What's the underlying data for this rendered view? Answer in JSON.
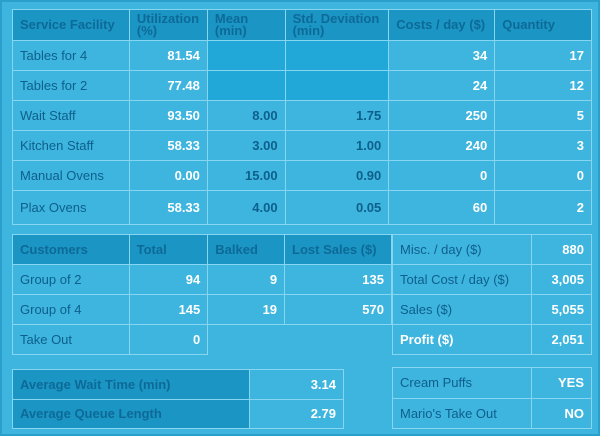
{
  "facilities": {
    "headers": [
      "Service Facility",
      "Utilization (%)",
      "Mean (min)",
      "Std. Deviation (min)",
      "Costs / day ($)",
      "Quantity"
    ],
    "rows": [
      {
        "name": "Tables for 4",
        "util": "81.54",
        "mean": "",
        "std": "",
        "cost": "34",
        "qty": "17"
      },
      {
        "name": "Tables for 2",
        "util": "77.48",
        "mean": "",
        "std": "",
        "cost": "24",
        "qty": "12"
      },
      {
        "name": "Wait Staff",
        "util": "93.50",
        "mean": "8.00",
        "std": "1.75",
        "cost": "250",
        "qty": "5"
      },
      {
        "name": "Kitchen Staff",
        "util": "58.33",
        "mean": "3.00",
        "std": "1.00",
        "cost": "240",
        "qty": "3"
      },
      {
        "name": "Manual Ovens",
        "util": "0.00",
        "mean": "15.00",
        "std": "0.90",
        "cost": "0",
        "qty": "0"
      },
      {
        "name": "Plax Ovens",
        "util": "58.33",
        "mean": "4.00",
        "std": "0.05",
        "cost": "60",
        "qty": "2"
      }
    ]
  },
  "customers": {
    "headers": [
      "Customers",
      "Total",
      "Balked",
      "Lost Sales ($)"
    ],
    "rows": [
      {
        "name": "Group of 2",
        "total": "94",
        "balked": "9",
        "lost": "135"
      },
      {
        "name": "Group of 4",
        "total": "145",
        "balked": "19",
        "lost": "570"
      },
      {
        "name": "Take Out",
        "total": "0"
      }
    ]
  },
  "financials": [
    {
      "label": "Misc. / day ($)",
      "value": "880"
    },
    {
      "label": "Total Cost / day ($)",
      "value": "3,005"
    },
    {
      "label": "Sales ($)",
      "value": "5,055"
    },
    {
      "label": "Profit ($)",
      "value": "2,051"
    }
  ],
  "averages": [
    {
      "label": "Average Wait Time (min)",
      "value": "3.14"
    },
    {
      "label": "Average Queue Length",
      "value": "2.79"
    }
  ],
  "options": [
    {
      "label": "Cream Puffs",
      "value": "YES"
    },
    {
      "label": "Mario's Take Out",
      "value": "NO"
    }
  ]
}
